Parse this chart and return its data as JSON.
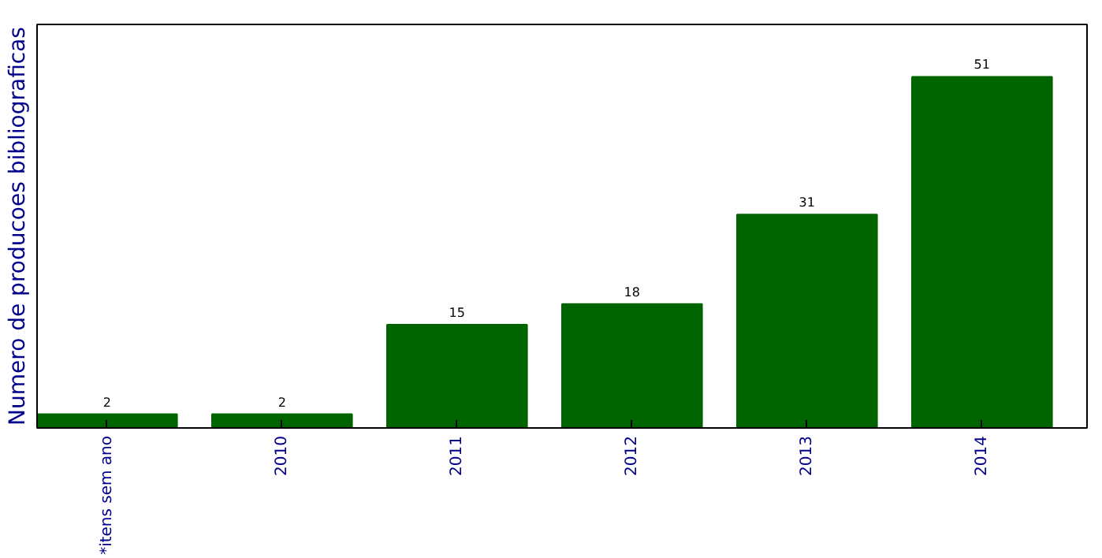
{
  "chart_data": {
    "type": "bar",
    "ylabel": "Numero de producoes bibliograficas",
    "categories": [
      "*itens sem ano",
      "2010",
      "2011",
      "2012",
      "2013",
      "2014"
    ],
    "values": [
      2,
      2,
      15,
      18,
      31,
      51
    ],
    "color": "#006400",
    "data_labels": true,
    "ylim": [
      0,
      58.6
    ],
    "grid": false
  }
}
